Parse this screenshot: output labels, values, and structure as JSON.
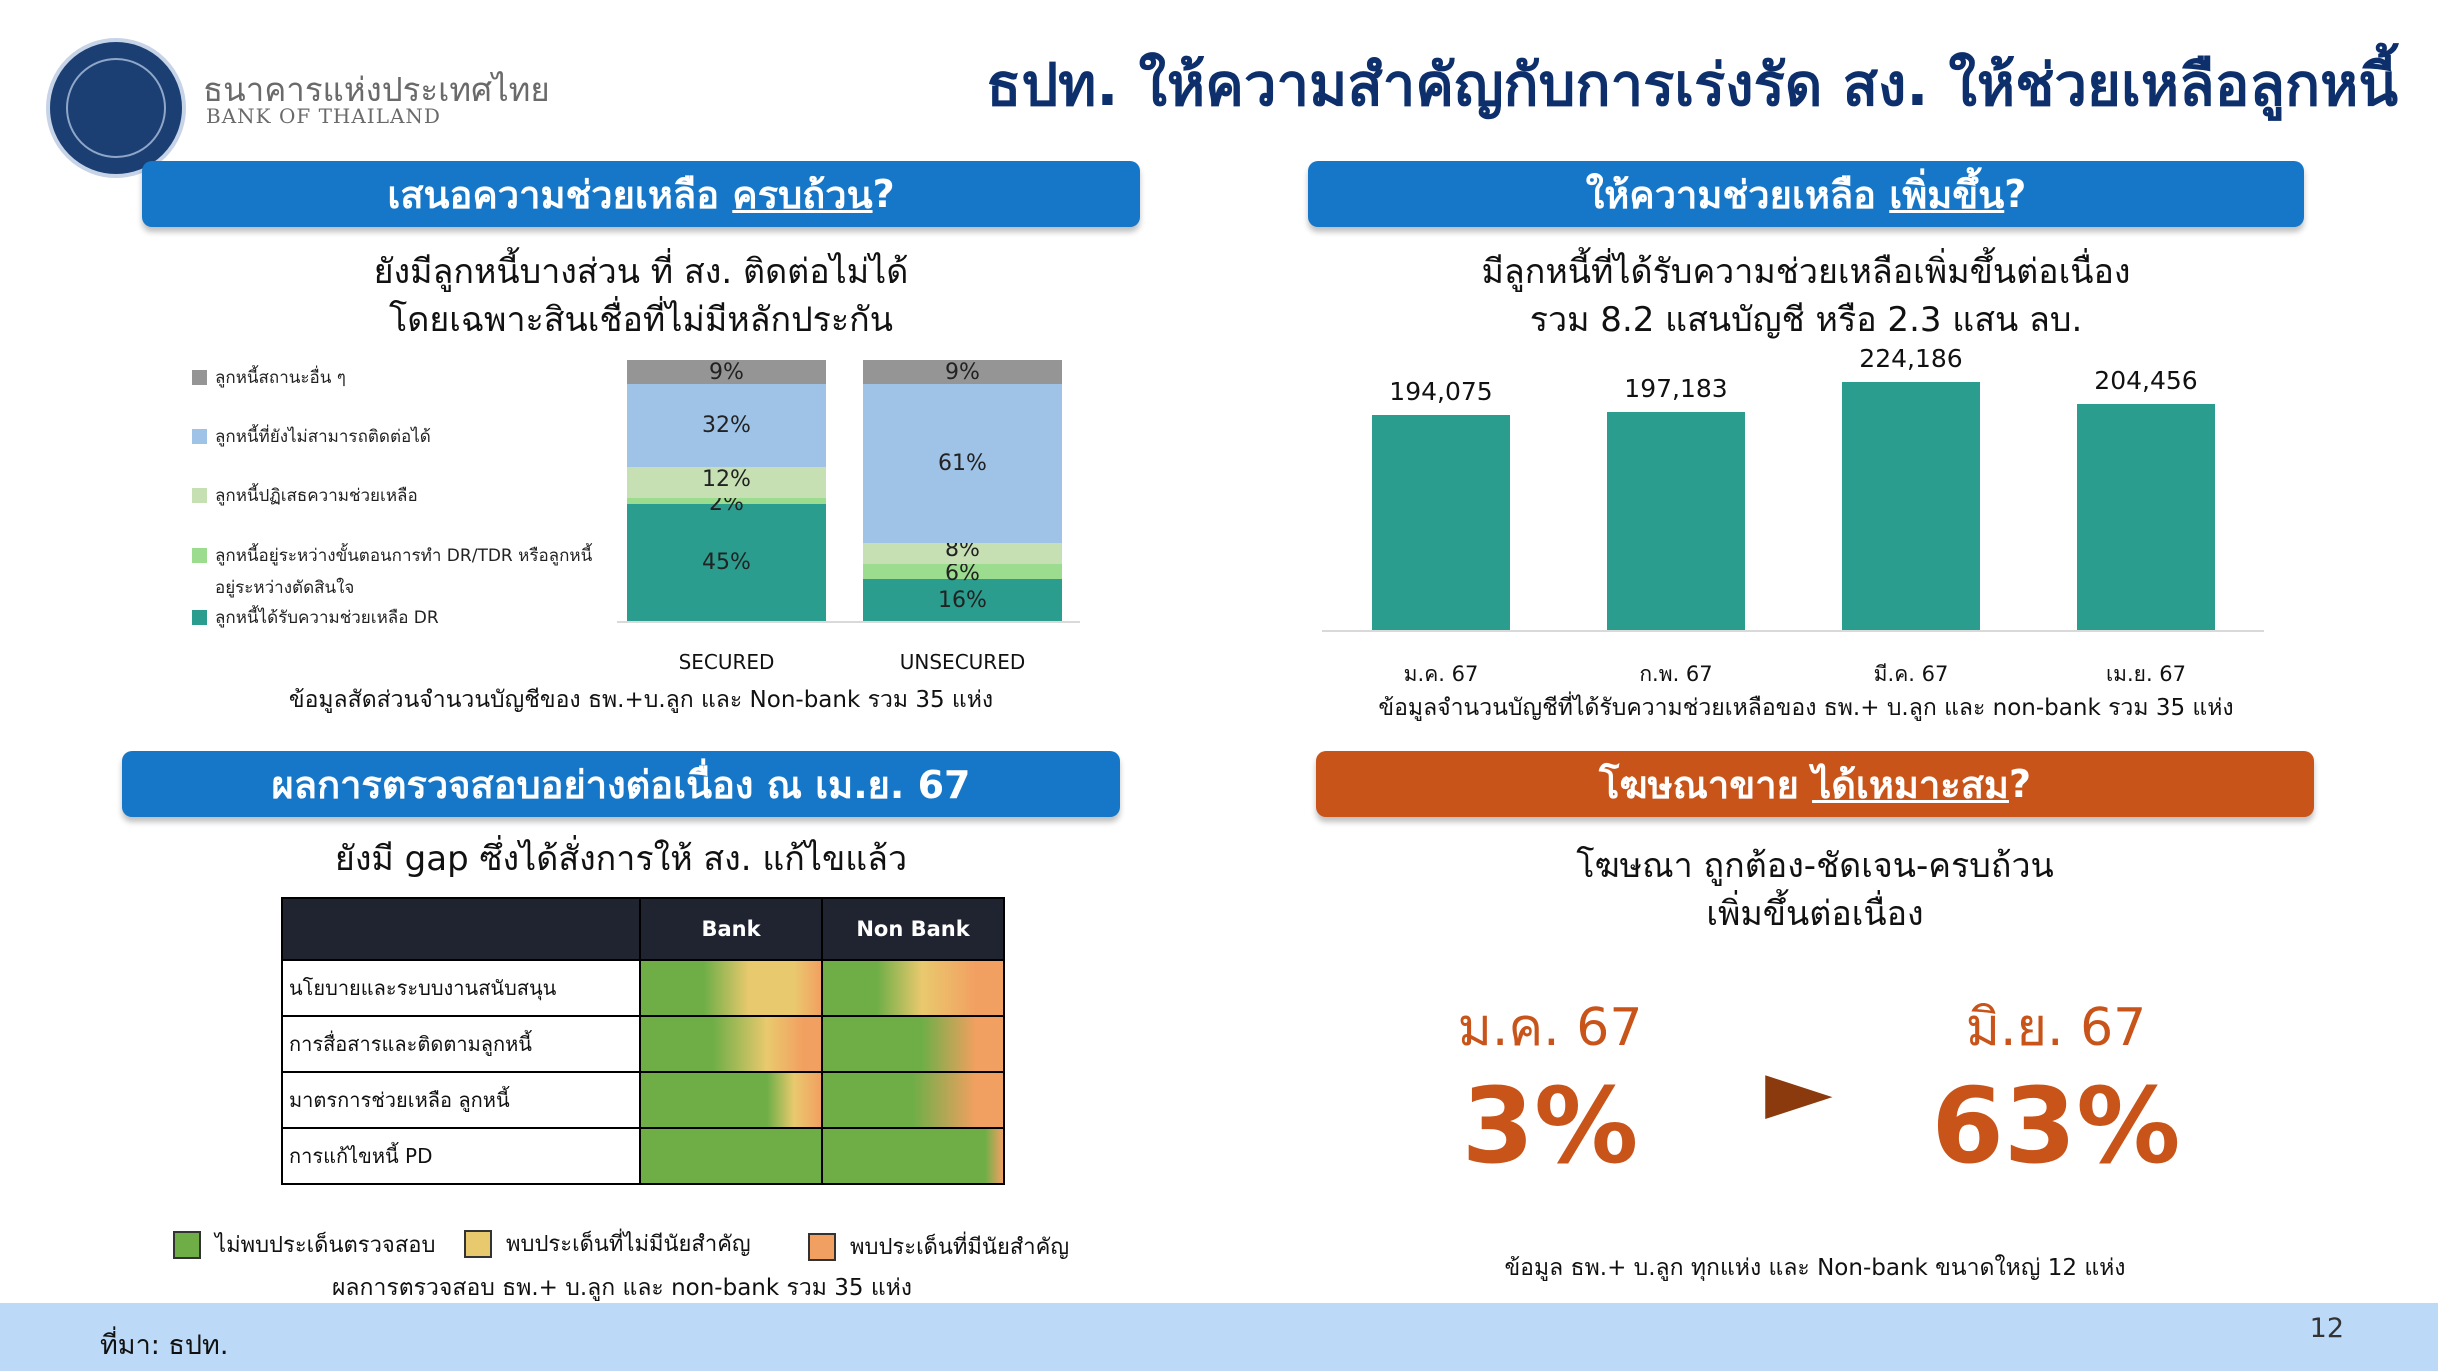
{
  "header": {
    "org_name_th": "ธนาคารแห่งประเทศไทย",
    "org_name_en": "BANK OF THAILAND",
    "title": "ธปท. ให้ความสำคัญกับการเร่งรัด สง. ให้ช่วยเหลือลูกหนี้"
  },
  "panel_tl": {
    "banner_prefix": "เสนอความช่วยเหลือ ",
    "banner_emph": "ครบถ้วน",
    "banner_suffix": " ?",
    "sub1": "ยังมีลูกหนี้บางส่วน ที่ สง. ติดต่อไม่ได้",
    "sub2": "โดยเฉพาะสินเชื่อที่ไม่มีหลักประกัน",
    "legend": [
      {
        "label": "ลูกหนี้สถานะอื่น ๆ",
        "color": "#959595"
      },
      {
        "label": "ลูกหนี้ที่ยังไม่สามารถติดต่อได้",
        "color": "#9fc3e7"
      },
      {
        "label": "ลูกหนี้ปฏิเสธความช่วยเหลือ",
        "color": "#c6e0b4"
      },
      {
        "label": "ลูกหนี้อยู่ระหว่างขั้นตอนการทำ DR/TDR หรือลูกหนี้",
        "label2": "อยู่ระหว่างตัดสินใจ",
        "color": "#9bdc8f"
      },
      {
        "label": "ลูกหนี้ได้รับความช่วยเหลือ DR",
        "color": "#2a9d8f"
      }
    ],
    "note": "ข้อมูลสัดส่วนจำนวนบัญชีของ ธพ.+บ.ลูก และ Non-bank รวม 35 แห่ง"
  },
  "chart_data": [
    {
      "type": "bar",
      "stacked": true,
      "categories": [
        "SECURED",
        "UNSECURED"
      ],
      "series": [
        {
          "name": "ลูกหนี้ได้รับความช่วยเหลือ DR",
          "values": [
            45,
            16
          ],
          "labels": [
            "45%",
            "16%"
          ]
        },
        {
          "name": "ลูกหนี้อยู่ระหว่างขั้นตอนการทำ DR/TDR หรือลูกหนี้อยู่ระหว่างตัดสินใจ",
          "values": [
            2,
            6
          ],
          "labels": [
            "2%",
            "6%"
          ]
        },
        {
          "name": "ลูกหนี้ปฏิเสธความช่วยเหลือ",
          "values": [
            12,
            8
          ],
          "labels": [
            "12%",
            "8%"
          ]
        },
        {
          "name": "ลูกหนี้ที่ยังไม่สามารถติดต่อได้",
          "values": [
            32,
            61
          ],
          "labels": [
            "32%",
            "61%"
          ]
        },
        {
          "name": "ลูกหนี้สถานะอื่น ๆ",
          "values": [
            9,
            9
          ],
          "labels": [
            "9%",
            "9%"
          ]
        }
      ],
      "ylim": [
        0,
        100
      ],
      "legend": "left"
    },
    {
      "type": "bar",
      "categories": [
        "ม.ค. 67",
        "ก.พ. 67",
        "มี.ค. 67",
        "เม.ย. 67"
      ],
      "values": [
        194075,
        197183,
        224186,
        204456
      ],
      "labels": [
        "194,075",
        "197,183",
        "224,186",
        "204,456"
      ],
      "color": "#2a9d8f"
    }
  ],
  "panel_tr": {
    "banner_prefix": "ให้ความช่วยเหลือ ",
    "banner_emph": "เพิ่มขึ้น",
    "banner_suffix": " ?",
    "sub1": "มีลูกหนี้ที่ได้รับความช่วยเหลือเพิ่มขึ้นต่อเนื่อง",
    "sub2": "รวม 8.2 แสนบัญชี หรือ 2.3 แสน ลบ.",
    "note": "ข้อมูลจำนวนบัญชีที่ได้รับความช่วยเหลือของ ธพ.+ บ.ลูก และ non-bank รวม 35 แห่ง"
  },
  "panel_bl": {
    "banner": "ผลการตรวจสอบอย่างต่อเนื่อง ณ เม.ย. 67",
    "sub": "ยังมี gap ซึ่งได้สั่งการให้ สง. แก้ไขแล้ว",
    "table": {
      "headers": [
        "",
        "Bank",
        "Non Bank"
      ],
      "rows": [
        "นโยบายและระบบงานสนับสนุน",
        "การสื่อสารและติดตามลูกหนี้",
        "มาตรการช่วยเหลือ ลูกหนี้",
        "การแก้ไขหนี้ PD"
      ]
    },
    "key": [
      {
        "label": "ไม่พบประเด็นตรวจสอบ",
        "color": "#6fae47"
      },
      {
        "label": "พบประเด็นที่ไม่มีนัยสำคัญ",
        "color": "#e9c96e"
      },
      {
        "label": "พบประเด็นที่มีนัยสำคัญ",
        "color": "#f2a061"
      }
    ],
    "note": "ผลการตรวจสอบ ธพ.+ บ.ลูก และ non-bank รวม 35 แห่ง"
  },
  "panel_br": {
    "banner_prefix": "โฆษณาขาย ",
    "banner_emph": "ได้เหมาะสม",
    "banner_suffix": " ?",
    "sub1": "โฆษณา ถูกต้อง-ชัดเจน-ครบถ้วน",
    "sub2": "เพิ่มขึ้นต่อเนื่อง",
    "from_month": "ม.ค. 67",
    "from_value": "3%",
    "arrow": "►",
    "to_month": "มิ.ย. 67",
    "to_value": "63%",
    "note": "ข้อมูล ธพ.+ บ.ลูก ทุกแห่ง และ Non-bank ขนาดใหญ่ 12 แห่ง"
  },
  "footer": {
    "source": "ที่มา: ธปท.",
    "page_number": "12"
  }
}
